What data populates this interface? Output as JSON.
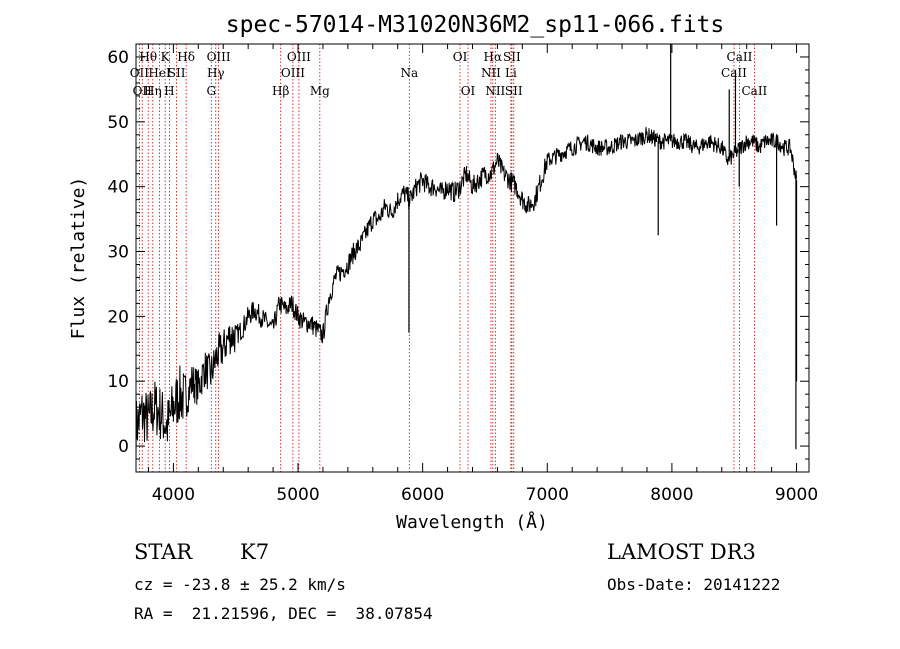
{
  "chart_data": {
    "type": "line",
    "title": "spec-57014-M31020N36M2_sp11-066.fits",
    "xlabel": "Wavelength (Å)",
    "ylabel": "Flux (relative)",
    "xlim": [
      3700,
      9100
    ],
    "ylim": [
      -4,
      62
    ],
    "xticks": [
      4000,
      5000,
      6000,
      7000,
      8000,
      9000
    ],
    "yticks": [
      0,
      10,
      20,
      30,
      40,
      50,
      60
    ],
    "series": [
      {
        "name": "flux",
        "x": [
          3700,
          3750,
          3800,
          3850,
          3900,
          3950,
          4000,
          4050,
          4100,
          4150,
          4200,
          4250,
          4300,
          4350,
          4400,
          4450,
          4500,
          4550,
          4600,
          4650,
          4700,
          4750,
          4800,
          4850,
          4900,
          4950,
          5000,
          5050,
          5100,
          5150,
          5200,
          5250,
          5300,
          5350,
          5400,
          5450,
          5500,
          5550,
          5600,
          5650,
          5700,
          5750,
          5800,
          5850,
          5900,
          5950,
          6000,
          6050,
          6100,
          6150,
          6200,
          6250,
          6300,
          6350,
          6400,
          6450,
          6500,
          6550,
          6600,
          6650,
          6700,
          6750,
          6800,
          6850,
          6900,
          6950,
          7000,
          7100,
          7200,
          7300,
          7400,
          7500,
          7600,
          7700,
          7800,
          7900,
          8000,
          8100,
          8200,
          8300,
          8400,
          8450,
          8500,
          8550,
          8600,
          8650,
          8700,
          8750,
          8800,
          8850,
          8900,
          8950,
          9000
        ],
        "y": [
          3,
          5,
          4,
          6,
          5,
          3,
          6,
          8,
          7,
          10,
          9,
          12,
          11,
          14,
          15,
          17,
          17,
          18,
          20,
          21,
          20,
          19,
          18,
          22,
          21,
          22,
          20,
          19,
          19,
          18,
          17,
          23,
          26,
          27,
          28,
          30,
          31,
          33,
          35,
          35,
          37,
          36,
          38,
          39,
          38,
          40,
          41,
          40,
          40,
          39,
          40,
          39,
          40,
          42,
          40,
          41,
          42,
          42,
          44,
          42,
          41,
          40,
          38,
          37,
          38,
          41,
          44,
          45,
          46,
          47,
          46,
          46,
          47,
          47,
          48,
          47,
          47,
          47,
          46,
          47,
          46,
          44,
          45,
          46,
          47,
          47,
          46,
          47,
          47,
          47,
          46,
          46,
          41
        ]
      }
    ],
    "spikes": [
      {
        "x": 5890,
        "y": 17.5,
        "label_ref": "Na"
      },
      {
        "x": 7890,
        "y": 32.5
      },
      {
        "x": 7990,
        "y": 62
      },
      {
        "x": 8460,
        "y": 55
      },
      {
        "x": 8510,
        "y": 58
      },
      {
        "x": 8540,
        "y": 40
      },
      {
        "x": 8840,
        "y": 34
      },
      {
        "x": 8995,
        "y": -0.5
      },
      {
        "x": 9000,
        "y": 10
      }
    ],
    "line_markers": [
      {
        "wavelength": 3727,
        "label": "OII",
        "row": 2
      },
      {
        "wavelength": 3750,
        "label": "OII",
        "row": 3
      },
      {
        "wavelength": 3798,
        "label": "Hθ",
        "row": 1
      },
      {
        "wavelength": 3835,
        "label": "Hη",
        "row": 3
      },
      {
        "wavelength": 3889,
        "label": "HeI",
        "row": 2
      },
      {
        "wavelength": 3934,
        "label": "K",
        "row": 1
      },
      {
        "wavelength": 3968,
        "label": "H",
        "row": 3
      },
      {
        "wavelength": 4026,
        "label": "SII",
        "row": 2
      },
      {
        "wavelength": 4102,
        "label": "Hδ",
        "row": 1
      },
      {
        "wavelength": 4304,
        "label": "G",
        "row": 3
      },
      {
        "wavelength": 4340,
        "label": "Hγ",
        "row": 2
      },
      {
        "wavelength": 4363,
        "label": "OIII",
        "row": 1
      },
      {
        "wavelength": 4861,
        "label": "Hβ",
        "row": 3
      },
      {
        "wavelength": 4959,
        "label": "OIII",
        "row": 2
      },
      {
        "wavelength": 5007,
        "label": "OIII",
        "row": 1
      },
      {
        "wavelength": 5175,
        "label": "Mg",
        "row": 3
      },
      {
        "wavelength": 5893,
        "label": "Na",
        "row": 2
      },
      {
        "wavelength": 6300,
        "label": "OI",
        "row": 1
      },
      {
        "wavelength": 6364,
        "label": "OI",
        "row": 3
      },
      {
        "wavelength": 6548,
        "label": "NII",
        "row": 2
      },
      {
        "wavelength": 6563,
        "label": "Hα",
        "row": 1
      },
      {
        "wavelength": 6583,
        "label": "NII",
        "row": 3
      },
      {
        "wavelength": 6708,
        "label": "Li",
        "row": 2
      },
      {
        "wavelength": 6716,
        "label": "SII",
        "row": 1
      },
      {
        "wavelength": 6731,
        "label": "SII",
        "row": 3
      },
      {
        "wavelength": 8498,
        "label": "CaII",
        "row": 2
      },
      {
        "wavelength": 8542,
        "label": "CaII",
        "row": 1
      },
      {
        "wavelength": 8662,
        "label": "CaII",
        "row": 3
      }
    ]
  },
  "info": {
    "object_class": "STAR",
    "subclass": "K7",
    "survey": "LAMOST DR3",
    "redshift_line": "cz = -23.8 ± 25.2 km/s",
    "obs_date_line": "Obs-Date: 20141222",
    "coords_line": "RA =  21.21596, DEC =  38.07854"
  },
  "colors": {
    "axis": "#000000",
    "spectrum": "#000000",
    "marker": "#cc0000"
  }
}
